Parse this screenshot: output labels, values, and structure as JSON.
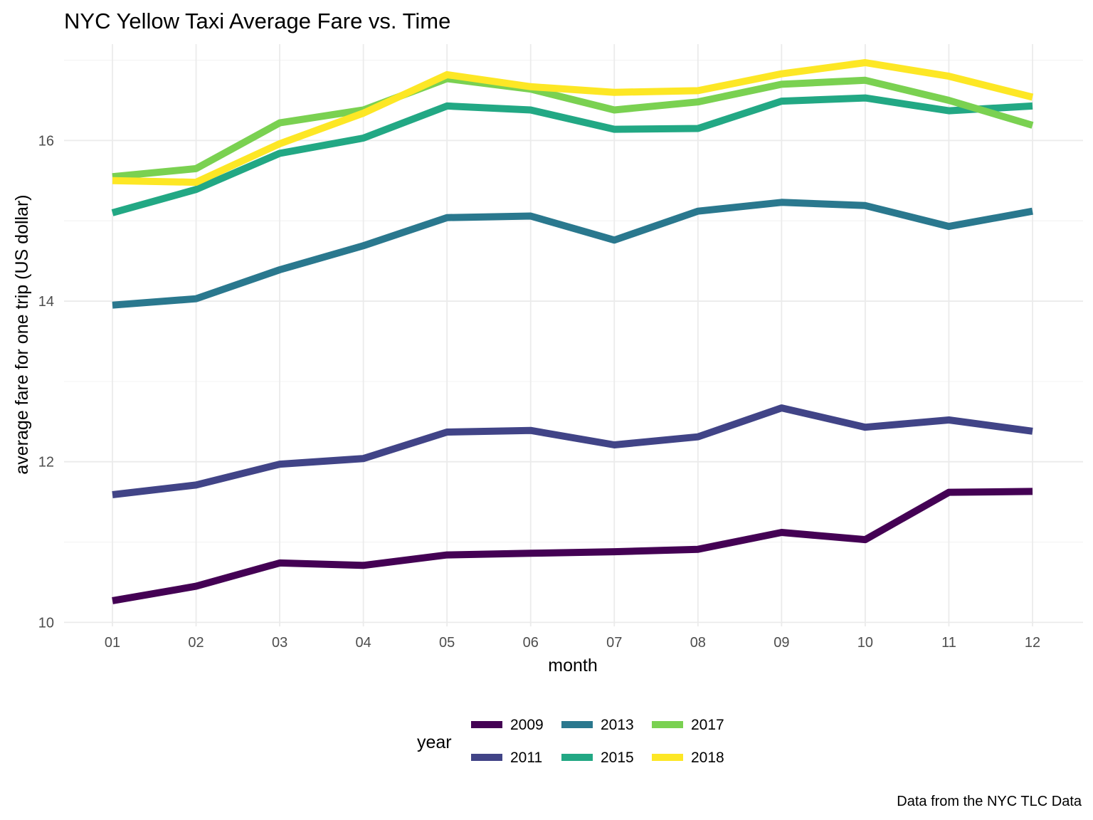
{
  "chart_data": {
    "type": "line",
    "title": "NYC Yellow Taxi Average Fare vs. Time",
    "xlabel": "month",
    "ylabel": "average fare for one trip (US dollar)",
    "caption": "Data from the NYC TLC Data",
    "x": [
      "01",
      "02",
      "03",
      "04",
      "05",
      "06",
      "07",
      "08",
      "09",
      "10",
      "11",
      "12"
    ],
    "ylim": [
      9.95,
      17.2
    ],
    "y_ticks": [
      10,
      12,
      14,
      16
    ],
    "grid": true,
    "legend": {
      "title": "year",
      "position": "bottom",
      "rows": [
        [
          "2009",
          "2013",
          "2017"
        ],
        [
          "2011",
          "2015",
          "2018"
        ]
      ]
    },
    "series": [
      {
        "name": "2009",
        "color": "#440154",
        "values": [
          10.27,
          10.45,
          10.74,
          10.71,
          10.84,
          10.86,
          10.88,
          10.91,
          11.12,
          11.03,
          11.62,
          11.63
        ]
      },
      {
        "name": "2011",
        "color": "#414487",
        "values": [
          11.59,
          11.71,
          11.97,
          12.04,
          12.37,
          12.39,
          12.21,
          12.31,
          12.67,
          12.43,
          12.52,
          12.38
        ]
      },
      {
        "name": "2013",
        "color": "#2A788E",
        "values": [
          13.95,
          14.03,
          14.39,
          14.69,
          15.04,
          15.06,
          14.76,
          15.12,
          15.23,
          15.19,
          14.93,
          15.12
        ]
      },
      {
        "name": "2015",
        "color": "#22A884",
        "values": [
          15.1,
          15.39,
          15.84,
          16.03,
          16.43,
          16.38,
          16.14,
          16.15,
          16.49,
          16.53,
          16.37,
          16.43
        ]
      },
      {
        "name": "2017",
        "color": "#7AD151",
        "values": [
          15.55,
          15.65,
          16.22,
          16.38,
          16.77,
          16.64,
          16.38,
          16.48,
          16.7,
          16.75,
          16.5,
          16.19
        ]
      },
      {
        "name": "2018",
        "color": "#FDE725",
        "values": [
          15.5,
          15.48,
          15.96,
          16.34,
          16.82,
          16.67,
          16.6,
          16.62,
          16.83,
          16.97,
          16.8,
          16.54
        ]
      }
    ]
  }
}
